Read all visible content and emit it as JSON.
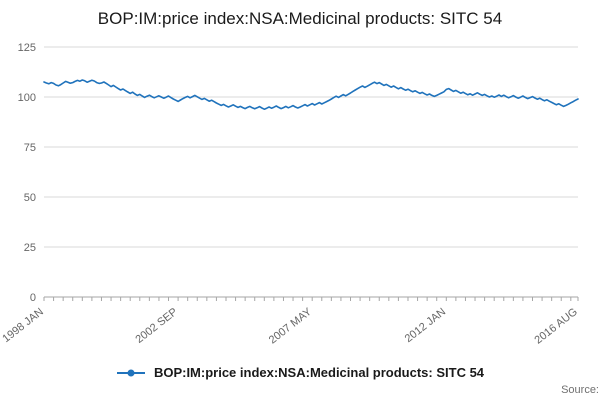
{
  "chart_data": {
    "type": "line",
    "title": "BOP:IM:price index:NSA:Medicinal products: SITC 54",
    "legend": "BOP:IM:price index:NSA:Medicinal products: SITC 54",
    "source": "Source:",
    "xlabel": "",
    "ylabel": "",
    "ylim": [
      0,
      125
    ],
    "yticks": [
      0,
      25,
      50,
      75,
      100,
      125
    ],
    "grid": true,
    "legend_position": "bottom",
    "frequency": "monthly",
    "x_start": "1998 JAN",
    "x_end": "2016 AUG",
    "x_tick_labels": [
      {
        "index": 0,
        "label": "1998 JAN"
      },
      {
        "index": 56,
        "label": "2002 SEP"
      },
      {
        "index": 112,
        "label": "2007 MAY"
      },
      {
        "index": 168,
        "label": "2012 JAN"
      },
      {
        "index": 223,
        "label": "2016 AUG"
      }
    ],
    "colors": {
      "series": "#2073bc",
      "grid": "#d9d9d9",
      "axis": "#a6a6a6",
      "tick_text": "#666666"
    },
    "series": [
      {
        "name": "BOP:IM:price index:NSA:Medicinal products: SITC 54",
        "color": "#2073bc",
        "values": [
          107.5,
          107.0,
          106.6,
          107.2,
          106.8,
          106.0,
          105.6,
          106.2,
          107.0,
          107.8,
          107.4,
          106.9,
          107.2,
          107.8,
          108.3,
          107.9,
          108.5,
          108.1,
          107.4,
          107.9,
          108.4,
          108.0,
          107.2,
          106.8,
          107.0,
          107.5,
          106.8,
          106.0,
          105.2,
          105.8,
          105.0,
          104.2,
          103.5,
          104.0,
          103.2,
          102.5,
          101.8,
          102.4,
          101.5,
          100.8,
          101.3,
          100.5,
          99.8,
          100.4,
          100.9,
          100.2,
          99.6,
          100.1,
          100.6,
          100.0,
          99.4,
          99.9,
          100.5,
          99.7,
          99.0,
          98.4,
          97.8,
          98.5,
          99.2,
          99.8,
          100.3,
          99.6,
          100.2,
          100.8,
          100.1,
          99.4,
          98.8,
          99.3,
          98.6,
          97.9,
          98.4,
          97.7,
          97.0,
          96.4,
          95.8,
          96.3,
          95.6,
          95.0,
          95.5,
          96.1,
          95.4,
          94.8,
          95.3,
          94.7,
          94.2,
          94.8,
          95.3,
          94.6,
          94.1,
          94.6,
          95.2,
          94.5,
          93.9,
          94.4,
          95.0,
          94.4,
          94.9,
          95.5,
          94.8,
          94.2,
          94.7,
          95.3,
          94.6,
          95.1,
          95.7,
          95.0,
          94.5,
          95.0,
          95.6,
          96.2,
          95.5,
          96.1,
          96.7,
          96.0,
          96.6,
          97.2,
          96.5,
          97.1,
          97.7,
          98.3,
          99.0,
          99.7,
          100.4,
          99.8,
          100.5,
          101.2,
          100.6,
          101.3,
          102.0,
          102.8,
          103.5,
          104.2,
          104.9,
          105.5,
          104.8,
          105.4,
          106.1,
          106.8,
          107.4,
          106.7,
          107.2,
          106.5,
          105.8,
          106.3,
          105.6,
          104.9,
          105.5,
          104.8,
          104.1,
          104.7,
          104.0,
          103.4,
          103.9,
          103.2,
          102.6,
          103.1,
          102.4,
          101.8,
          102.3,
          101.6,
          101.0,
          101.5,
          100.8,
          100.3,
          100.8,
          101.4,
          102.0,
          102.6,
          103.8,
          104.2,
          103.5,
          102.8,
          103.3,
          102.6,
          101.9,
          102.4,
          101.7,
          101.1,
          101.6,
          100.9,
          101.5,
          102.1,
          101.4,
          100.8,
          101.3,
          100.6,
          100.0,
          100.5,
          99.9,
          100.4,
          101.0,
          100.3,
          100.9,
          100.2,
          99.6,
          100.1,
          100.7,
          100.0,
          99.4,
          99.9,
          100.5,
          99.8,
          99.2,
          99.7,
          100.2,
          99.5,
          98.9,
          99.4,
          98.7,
          98.1,
          98.6,
          97.9,
          97.3,
          96.7,
          96.1,
          96.6,
          95.9,
          95.3,
          95.8,
          96.4,
          97.1,
          97.7,
          98.4,
          99.0
        ]
      }
    ]
  }
}
